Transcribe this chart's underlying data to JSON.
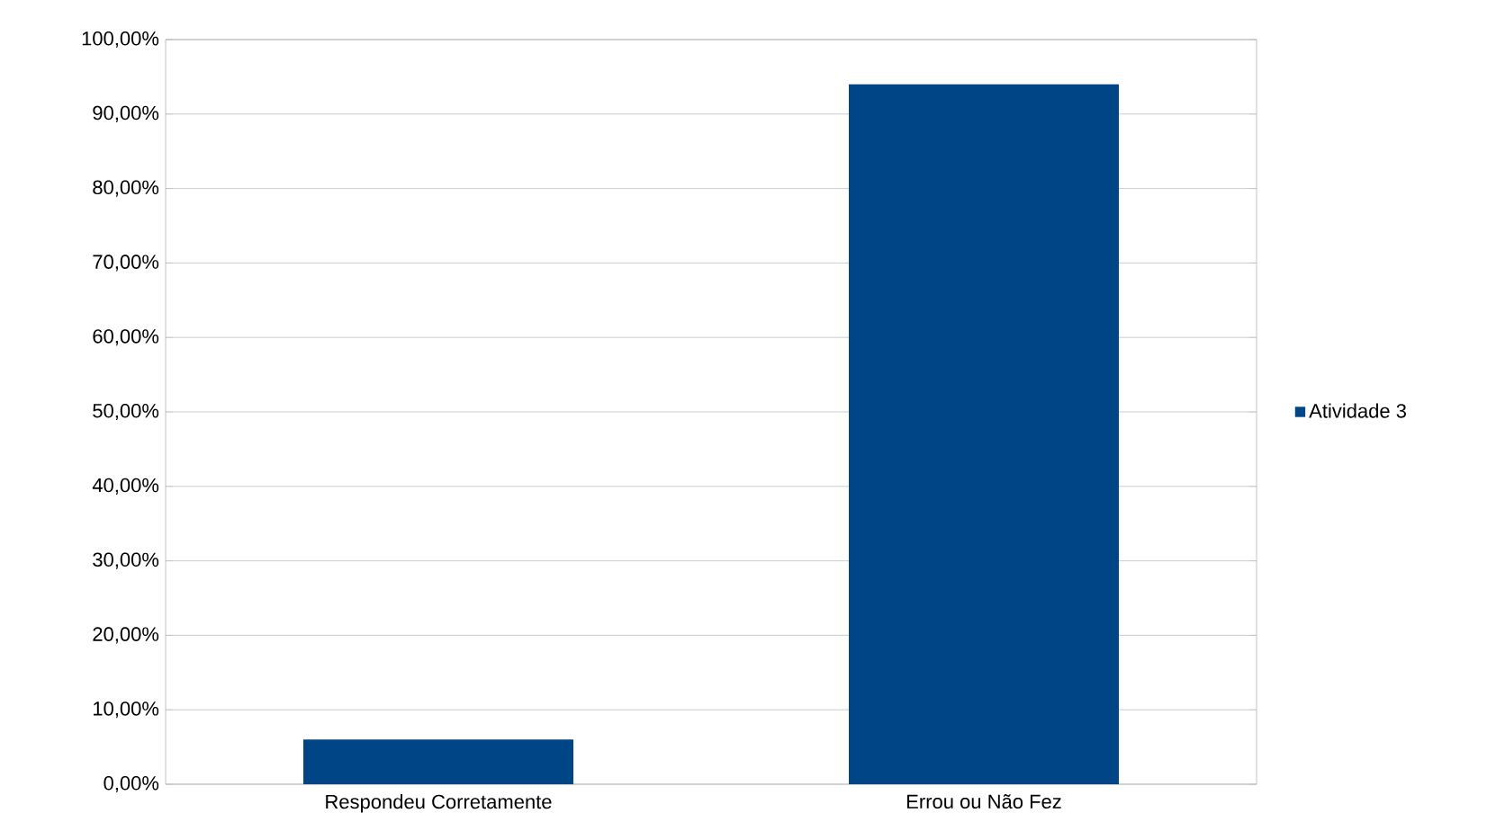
{
  "chart_data": {
    "type": "bar",
    "categories": [
      "Respondeu Corretamente",
      "Errou ou Não Fez"
    ],
    "series": [
      {
        "name": "Atividade 3",
        "color": "#004586",
        "values": [
          6,
          94
        ]
      }
    ],
    "ylim": [
      0,
      100
    ],
    "yticks": [
      {
        "value": 0,
        "label": "0,00%"
      },
      {
        "value": 10,
        "label": "10,00%"
      },
      {
        "value": 20,
        "label": "20,00%"
      },
      {
        "value": 30,
        "label": "30,00%"
      },
      {
        "value": 40,
        "label": "40,00%"
      },
      {
        "value": 50,
        "label": "50,00%"
      },
      {
        "value": 60,
        "label": "60,00%"
      },
      {
        "value": 70,
        "label": "70,00%"
      },
      {
        "value": 80,
        "label": "80,00%"
      },
      {
        "value": 90,
        "label": "90,00%"
      },
      {
        "value": 100,
        "label": "100,00%"
      }
    ],
    "grid": "y",
    "legend": "right"
  }
}
